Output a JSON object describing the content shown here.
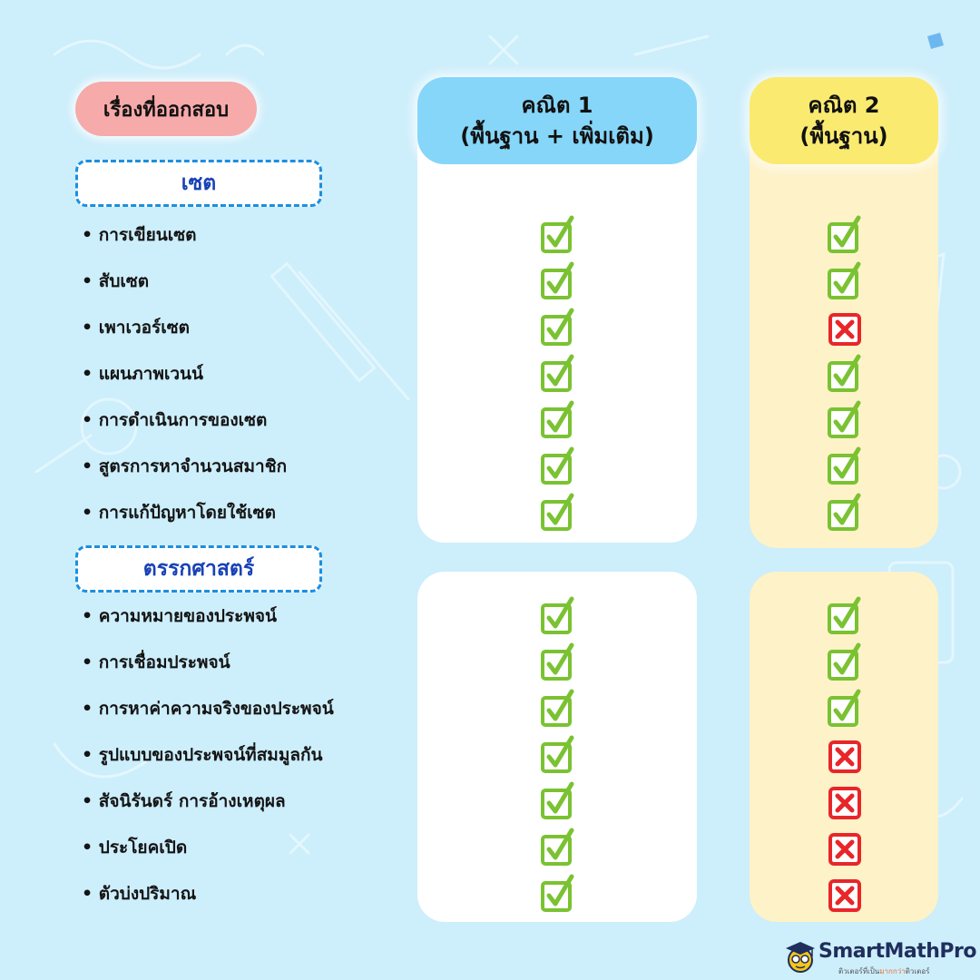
{
  "header": {
    "topics_title": "เรื่องที่ออกสอบ",
    "col1_line1": "คณิต 1",
    "col1_line2": "(พื้นฐาน + เพิ่มเติม)",
    "col2_line1": "คณิต 2",
    "col2_line2": "(พื้นฐาน)"
  },
  "sections": [
    {
      "title": "เซต",
      "topics": [
        {
          "label": "• การเขียนเซต",
          "math1": "check",
          "math2": "check"
        },
        {
          "label": "• สับเซต",
          "math1": "check",
          "math2": "check"
        },
        {
          "label": "• เพาเวอร์เซต",
          "math1": "check",
          "math2": "cross"
        },
        {
          "label": "• แผนภาพเวนน์",
          "math1": "check",
          "math2": "check"
        },
        {
          "label": "• การดำเนินการของเซต",
          "math1": "check",
          "math2": "check"
        },
        {
          "label": "• สูตรการหาจำนวนสมาชิก",
          "math1": "check",
          "math2": "check"
        },
        {
          "label": "• การแก้ปัญหาโดยใช้เซต",
          "math1": "check",
          "math2": "check"
        }
      ]
    },
    {
      "title": "ตรรกศาสตร์",
      "topics": [
        {
          "label": "• ความหมายของประพจน์",
          "math1": "check",
          "math2": "check"
        },
        {
          "label": "• การเชื่อมประพจน์",
          "math1": "check",
          "math2": "check"
        },
        {
          "label": "• การหาค่าความจริงของประพจน์",
          "math1": "check",
          "math2": "check"
        },
        {
          "label": "• รูปแบบของประพจน์ที่สมมูลกัน",
          "math1": "check",
          "math2": "cross"
        },
        {
          "label": "• สัจนิรันดร์ การอ้างเหตุผล",
          "math1": "check",
          "math2": "cross"
        },
        {
          "label": "• ประโยคเปิด",
          "math1": "check",
          "math2": "cross"
        },
        {
          "label": "• ตัวบ่งปริมาณ",
          "math1": "check",
          "math2": "cross"
        }
      ]
    }
  ],
  "logo": {
    "name": "SmartMathPro",
    "tagline_a": "ติวเตอร์ที่เป็น",
    "tagline_b": "มากกว่า",
    "tagline_c": "ติวเตอร์"
  },
  "icons": {
    "yes": "check-box-icon",
    "no": "cross-box-icon",
    "logo_mascot": "graduate-mascot-icon"
  },
  "colors": {
    "background": "#cdeefb",
    "check_green": "#7ac232",
    "cross_red": "#e8262a",
    "section_border": "#1b8fe0",
    "section_text": "#1842b6",
    "title_pill": "#f6aaa9",
    "col1_header": "#86d6f9",
    "col2_header": "#faea70",
    "col2_panel": "#fdf2c8"
  }
}
